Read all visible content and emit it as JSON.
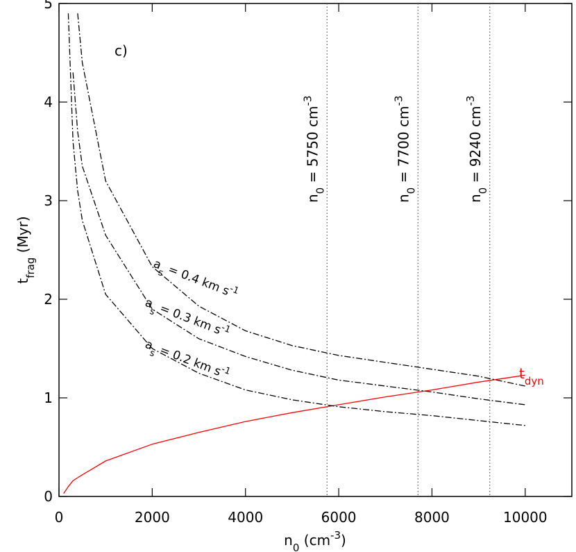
{
  "chart_data": {
    "type": "line",
    "panel_label": "c)",
    "x_label": [
      {
        "text": "n"
      },
      {
        "text": "0",
        "shift": "sub"
      },
      {
        "text": " (cm"
      },
      {
        "text": "-3",
        "shift": "sup"
      },
      {
        "text": ")"
      }
    ],
    "y_label": [
      {
        "text": "t"
      },
      {
        "text": "frag",
        "shift": "sub"
      },
      {
        "text": " (Myr)"
      }
    ],
    "x": [
      100,
      200,
      300,
      400,
      500,
      1000,
      2000,
      3000,
      4000,
      5000,
      6000,
      7000,
      8000,
      9000,
      10000
    ],
    "series": [
      {
        "name": [
          {
            "text": "t"
          },
          {
            "text": "dyn",
            "shift": "sub"
          }
        ],
        "color": "#ff0000",
        "dash": "solid",
        "values": [
          0.03,
          0.1,
          0.16,
          0.19,
          0.22,
          0.36,
          0.53,
          0.65,
          0.76,
          0.85,
          0.93,
          1.01,
          1.08,
          1.16,
          1.23
        ]
      },
      {
        "name": [
          {
            "text": "a"
          },
          {
            "text": "s",
            "shift": "sub"
          },
          {
            "text": " = 0.2 km s"
          },
          {
            "text": "-1",
            "shift": "sup"
          }
        ],
        "color": "#000000",
        "dash": "dashdot",
        "values": [
          null,
          4.9,
          3.6,
          3.1,
          2.8,
          2.05,
          1.5,
          1.25,
          1.08,
          0.98,
          0.91,
          0.86,
          0.82,
          0.77,
          0.72
        ]
      },
      {
        "name": [
          {
            "text": "a"
          },
          {
            "text": "s",
            "shift": "sub"
          },
          {
            "text": " = 0.3 km s"
          },
          {
            "text": "-1",
            "shift": "sup"
          }
        ],
        "color": "#000000",
        "dash": "dashdot",
        "values": [
          null,
          null,
          4.3,
          3.7,
          3.35,
          2.65,
          1.9,
          1.6,
          1.42,
          1.28,
          1.18,
          1.12,
          1.06,
          0.99,
          0.93
        ]
      },
      {
        "name": [
          {
            "text": "a"
          },
          {
            "text": "s",
            "shift": "sub"
          },
          {
            "text": " = 0.4 km s"
          },
          {
            "text": "-1",
            "shift": "sup"
          }
        ],
        "color": "#000000",
        "dash": "dashdot",
        "values": [
          null,
          null,
          null,
          4.9,
          4.4,
          3.2,
          2.33,
          1.93,
          1.68,
          1.53,
          1.43,
          1.36,
          1.29,
          1.22,
          1.12
        ]
      }
    ],
    "vlines": [
      {
        "x": 5750,
        "label": [
          {
            "text": "n"
          },
          {
            "text": "0",
            "shift": "sub"
          },
          {
            "text": " = 5750 cm"
          },
          {
            "text": "-3",
            "shift": "sup"
          }
        ]
      },
      {
        "x": 7700,
        "label": [
          {
            "text": "n"
          },
          {
            "text": "0",
            "shift": "sub"
          },
          {
            "text": " = 7700 cm"
          },
          {
            "text": "-3",
            "shift": "sup"
          }
        ]
      },
      {
        "x": 9240,
        "label": [
          {
            "text": "n"
          },
          {
            "text": "0",
            "shift": "sub"
          },
          {
            "text": " = 9240 cm"
          },
          {
            "text": "-3",
            "shift": "sup"
          }
        ]
      }
    ],
    "xlim": [
      0,
      11000
    ],
    "xticks": [
      0,
      2000,
      4000,
      6000,
      8000,
      10000
    ],
    "ylim": [
      0,
      5
    ],
    "yticks": [
      0,
      1,
      2,
      3,
      4,
      5
    ]
  }
}
